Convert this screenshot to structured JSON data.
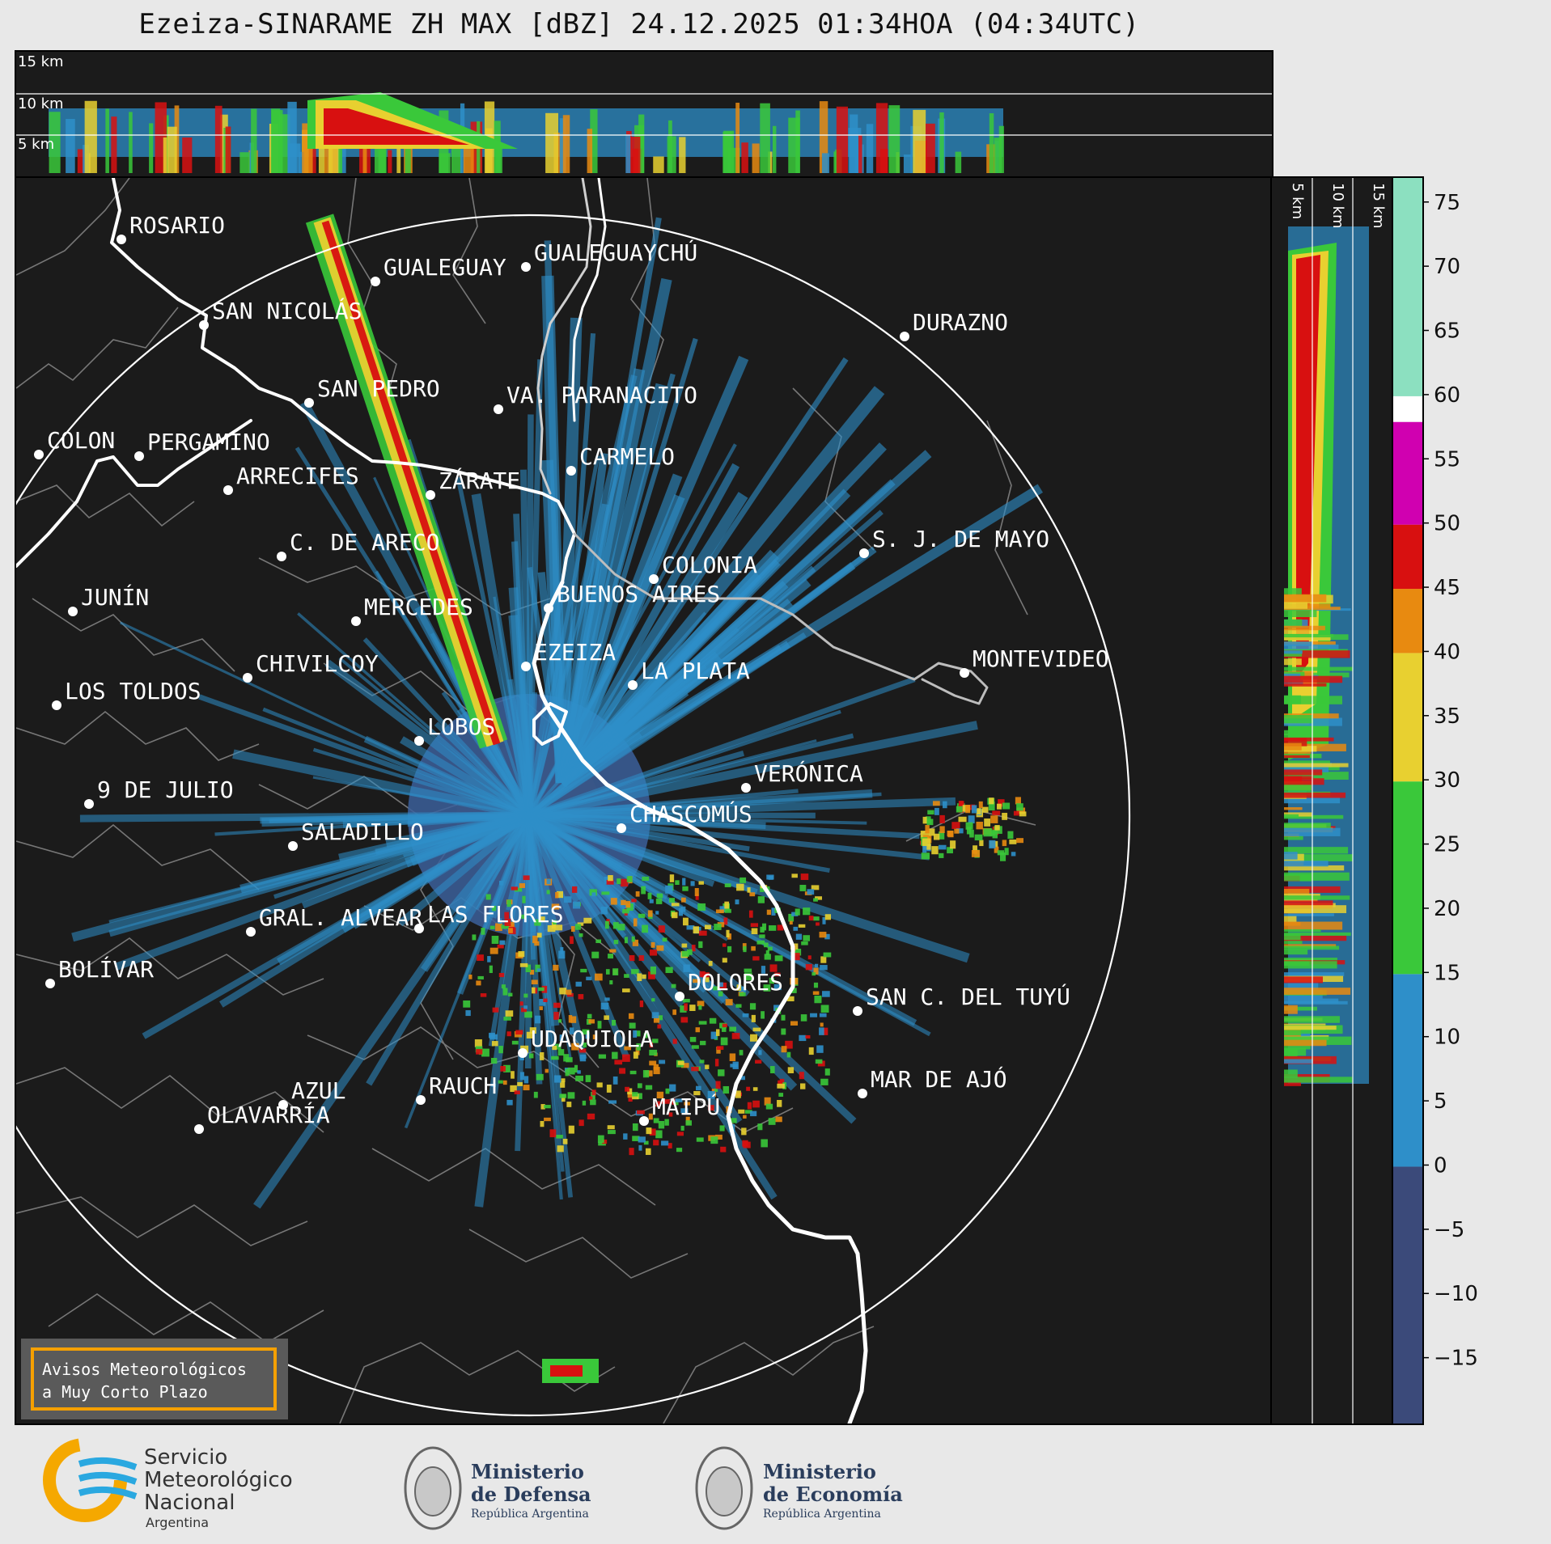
{
  "title": "Ezeiza-SINARAME ZH MAX [dBZ] 24.12.2025 01:34HOA (04:34UTC)",
  "top_panel": {
    "height_labels": [
      "15 km",
      "10 km",
      "5 km"
    ]
  },
  "side_panel": {
    "height_labels": [
      "5 km",
      "10 km",
      "15 km"
    ]
  },
  "colorbar": {
    "unit": "dBZ",
    "ticks": [
      "75",
      "70",
      "65",
      "60",
      "55",
      "50",
      "45",
      "40",
      "35",
      "30",
      "25",
      "20",
      "15",
      "10",
      "5",
      "0",
      "−5",
      "−10",
      "−15"
    ],
    "colors": {
      "lt0": "#3b4a7a",
      "b0_15": "#2e8fc9",
      "b15_30": "#3ac83a",
      "b30_40": "#e8d030",
      "b40_45": "#e88a10",
      "b45_50": "#d81010",
      "b50_58": "#d000b0",
      "b58_60": "#ffffff",
      "b60_75": "#8ce0c0"
    }
  },
  "cities": [
    {
      "name": "ROSARIO"
    },
    {
      "name": "GUALEGUAYCHÚ"
    },
    {
      "name": "GUALEGUAY"
    },
    {
      "name": "SAN NICOLÁS"
    },
    {
      "name": "DURAZNO"
    },
    {
      "name": "SAN PEDRO"
    },
    {
      "name": "VA. PARANACITO"
    },
    {
      "name": "COLON"
    },
    {
      "name": "PERGAMINO"
    },
    {
      "name": "CARMELO"
    },
    {
      "name": "ARRECIFES"
    },
    {
      "name": "ZÁRATE"
    },
    {
      "name": "S. J. DE MAYO"
    },
    {
      "name": "C. DE ARECO"
    },
    {
      "name": "COLONIA"
    },
    {
      "name": "BUENOS AIRES"
    },
    {
      "name": "JUNÍN"
    },
    {
      "name": "MERCEDES"
    },
    {
      "name": "MONTEVIDEO"
    },
    {
      "name": "EZEIZA"
    },
    {
      "name": "CHIVILCOY"
    },
    {
      "name": "LA PLATA"
    },
    {
      "name": "LOS TOLDOS"
    },
    {
      "name": "LOBOS"
    },
    {
      "name": "VERÓNICA"
    },
    {
      "name": "9 DE JULIO"
    },
    {
      "name": "CHASCOMÚS"
    },
    {
      "name": "SALADILLO"
    },
    {
      "name": "GRAL. ALVEAR"
    },
    {
      "name": "LAS FLORES"
    },
    {
      "name": "BOLÍVAR"
    },
    {
      "name": "DOLORES"
    },
    {
      "name": "SAN C. DEL TUYÚ"
    },
    {
      "name": "UDAQUIOLA"
    },
    {
      "name": "MAR DE AJÓ"
    },
    {
      "name": "AZUL"
    },
    {
      "name": "RAUCH"
    },
    {
      "name": "OLAVARRÍA"
    },
    {
      "name": "MAIPÚ"
    }
  ],
  "warning_box": {
    "line1": "Avisos Meteorológicos",
    "line2": "a Muy Corto Plazo",
    "border_color": "#f5a000"
  },
  "logos": {
    "smn_line1": "Servicio",
    "smn_line2": "Meteorológico",
    "smn_line3": "Nacional",
    "smn_line4": "Argentina",
    "defensa_line1": "Ministerio",
    "defensa_line2": "de Defensa",
    "defensa_line3": "República Argentina",
    "economia_line1": "Ministerio",
    "economia_line2": "de Economía",
    "economia_line3": "República Argentina"
  }
}
